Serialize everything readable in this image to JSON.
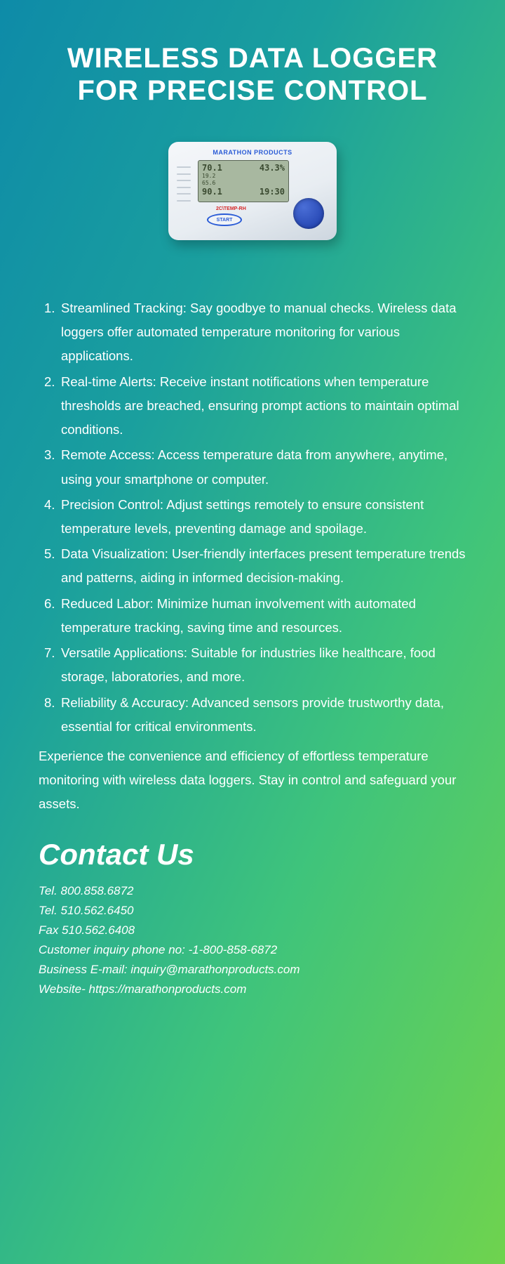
{
  "title": "WIRELESS DATA LOGGER FOR PRECISE CONTROL",
  "device": {
    "brand": "MARATHON PRODUCTS",
    "screen_top_left": "70.1",
    "screen_top_right": "43.3%",
    "screen_mid": "19.2",
    "screen_low": "65.6",
    "screen_bottom_left": "90.1",
    "screen_bottom_right": "19:30",
    "label": "2C\\TEMP-RH",
    "start": "START"
  },
  "features": [
    "Streamlined Tracking: Say goodbye to manual checks. Wireless data loggers offer automated temperature monitoring for various applications.",
    "Real-time Alerts: Receive instant notifications when temperature thresholds are breached, ensuring prompt actions to maintain optimal conditions.",
    "Remote Access: Access temperature data from anywhere, anytime, using your smartphone or computer.",
    "Precision Control: Adjust settings remotely to ensure consistent temperature levels, preventing damage and spoilage.",
    "Data Visualization: User-friendly interfaces present temperature trends and patterns, aiding in informed decision-making.",
    "Reduced Labor: Minimize human involvement with automated temperature tracking, saving time and resources.",
    "Versatile Applications: Suitable for industries like healthcare, food storage, laboratories, and more.",
    "Reliability & Accuracy: Advanced sensors provide trustworthy data, essential for critical environments."
  ],
  "closing": "Experience the convenience and efficiency of effortless temperature monitoring with wireless data loggers. Stay in control and safeguard your assets.",
  "contact": {
    "heading": "Contact Us",
    "lines": [
      "Tel. 800.858.6872",
      "Tel. 510.562.6450",
      "Fax 510.562.6408",
      "Customer inquiry phone no: -1-800-858-6872",
      "Business E-mail: inquiry@marathonproducts.com",
      "Website- https://marathonproducts.com"
    ]
  },
  "colors": {
    "text": "#ffffff",
    "gradient_start": "#0e8ba8",
    "gradient_end": "#6fd34e"
  }
}
